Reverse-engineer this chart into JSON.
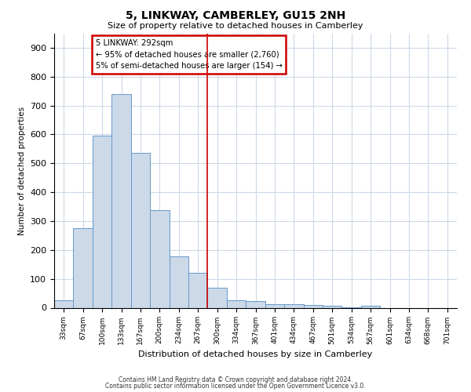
{
  "title": "5, LINKWAY, CAMBERLEY, GU15 2NH",
  "subtitle": "Size of property relative to detached houses in Camberley",
  "xlabel": "Distribution of detached houses by size in Camberley",
  "ylabel": "Number of detached properties",
  "bar_color": "#ccd9e8",
  "bar_edge_color": "#6699cc",
  "grid_color": "#ccd9e8",
  "background_color": "#ffffff",
  "vline_color": "#cc0000",
  "annotation_text": "5 LINKWAY: 292sqm\n← 95% of detached houses are smaller (2,760)\n5% of semi-detached houses are larger (154) →",
  "annotation_box_color": "#cc0000",
  "categories": [
    "33sqm",
    "67sqm",
    "100sqm",
    "133sqm",
    "167sqm",
    "200sqm",
    "234sqm",
    "267sqm",
    "300sqm",
    "334sqm",
    "367sqm",
    "401sqm",
    "434sqm",
    "467sqm",
    "501sqm",
    "534sqm",
    "567sqm",
    "601sqm",
    "634sqm",
    "668sqm",
    "701sqm"
  ],
  "values": [
    27,
    275,
    595,
    740,
    535,
    338,
    178,
    120,
    68,
    27,
    22,
    13,
    12,
    10,
    7,
    2,
    7,
    0,
    0,
    0,
    0
  ],
  "ylim": [
    0,
    950
  ],
  "yticks": [
    0,
    100,
    200,
    300,
    400,
    500,
    600,
    700,
    800,
    900
  ],
  "footer_line1": "Contains HM Land Registry data © Crown copyright and database right 2024.",
  "footer_line2": "Contains public sector information licensed under the Open Government Licence v3.0."
}
